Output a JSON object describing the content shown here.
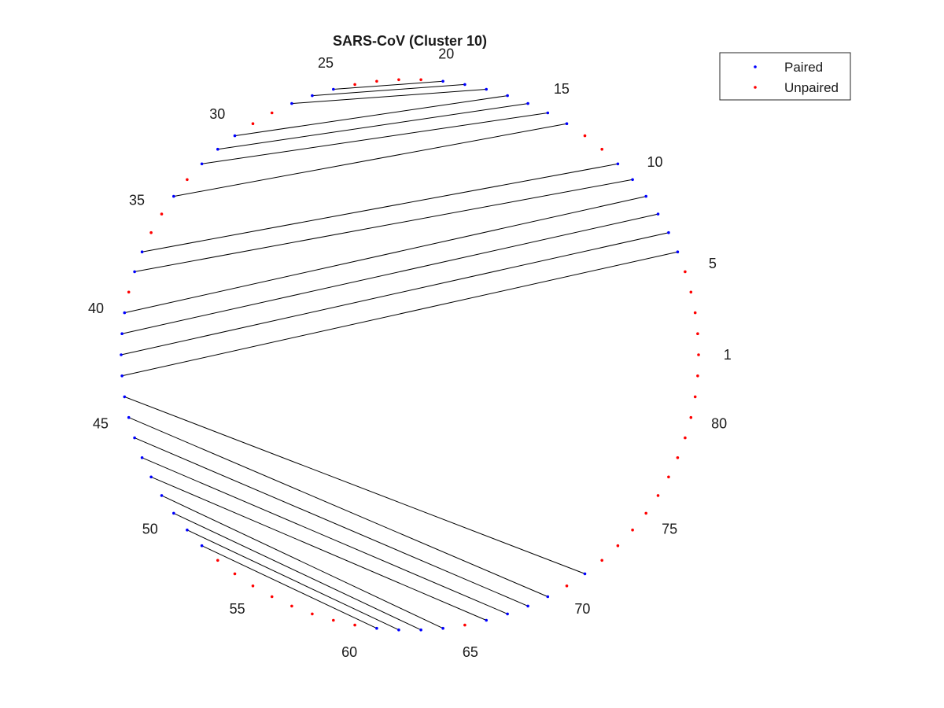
{
  "chart_data": {
    "type": "scatter",
    "title": "SARS-CoV (Cluster 10)",
    "n": 82,
    "layout": "circular-arc-diagram",
    "tick_labels": [
      "1",
      "5",
      "10",
      "15",
      "20",
      "25",
      "30",
      "35",
      "40",
      "45",
      "50",
      "55",
      "60",
      "65",
      "70",
      "75",
      "80"
    ],
    "tick_positions": [
      1,
      5,
      10,
      15,
      20,
      25,
      30,
      35,
      40,
      45,
      50,
      55,
      60,
      65,
      70,
      75,
      80
    ],
    "pairs": [
      [
        6,
        43
      ],
      [
        7,
        42
      ],
      [
        8,
        41
      ],
      [
        9,
        40
      ],
      [
        10,
        38
      ],
      [
        11,
        37
      ],
      [
        14,
        34
      ],
      [
        15,
        32
      ],
      [
        16,
        31
      ],
      [
        17,
        30
      ],
      [
        18,
        27
      ],
      [
        19,
        26
      ],
      [
        20,
        25
      ],
      [
        44,
        71
      ],
      [
        45,
        69
      ],
      [
        46,
        68
      ],
      [
        47,
        67
      ],
      [
        48,
        66
      ],
      [
        49,
        64
      ],
      [
        50,
        63
      ],
      [
        51,
        62
      ],
      [
        52,
        61
      ]
    ],
    "series": [
      {
        "name": "Paired",
        "color": "#0000ff"
      },
      {
        "name": "Unpaired",
        "color": "#ff0000"
      }
    ],
    "legend_position": "top-right",
    "grid": false
  }
}
